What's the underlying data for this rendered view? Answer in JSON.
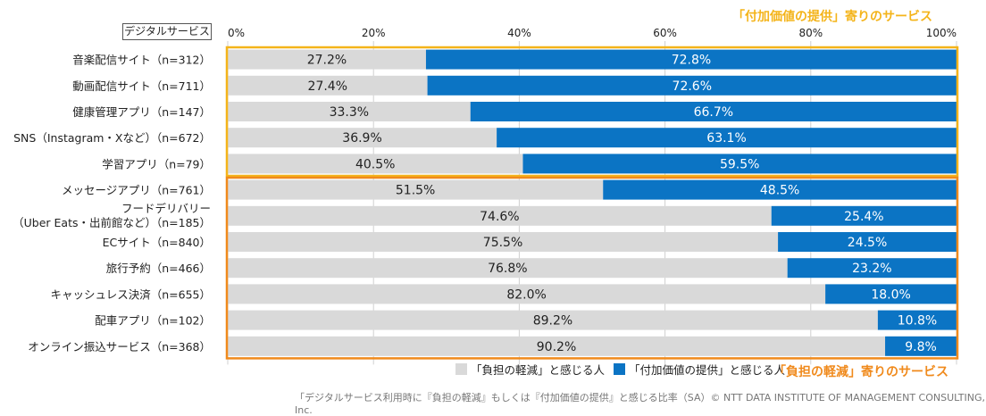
{
  "header": {
    "box_label": "デジタルサービス"
  },
  "groups": {
    "top_label": "「付加価値の提供」寄りのサービス",
    "bottom_label": "「負担の軽減」寄りのサービス",
    "top_color": "#f4b41a",
    "bottom_color": "#f08a1c"
  },
  "legend": [
    {
      "label": "「負担の軽減」と感じる人",
      "color": "#d9d9d9"
    },
    {
      "label": "「付加価値の提供」と感じる人",
      "color": "#0b74c4"
    }
  ],
  "footer": "「デジタルサービス利用時に『負担の軽減』もしくは『付加価値の提供』と感じる比率（SA）© NTT DATA INSTITUTE OF MANAGEMENT CONSULTING, Inc.",
  "chart_data": {
    "type": "bar",
    "orientation": "horizontal",
    "stacked": true,
    "x_ticks": [
      "0%",
      "20%",
      "40%",
      "60%",
      "80%",
      "100%"
    ],
    "xlim": [
      0,
      100
    ],
    "grid": true,
    "categories": [
      [
        "音楽配信サイト（n=312）"
      ],
      [
        "動画配信サイト（n=711）"
      ],
      [
        "健康管理アプリ（n=147）"
      ],
      [
        "SNS（Instagram・Xなど）（n=672）"
      ],
      [
        "学習アプリ（n=79）"
      ],
      [
        "メッセージアプリ（n=761）"
      ],
      [
        "フードデリバリー",
        "（Uber Eats・出前館など）（n=185）"
      ],
      [
        "ECサイト（n=840）"
      ],
      [
        "旅行予約（n=466）"
      ],
      [
        "キャッシュレス決済（n=655）"
      ],
      [
        "配車アプリ（n=102）"
      ],
      [
        "オンライン振込サービス（n=368）"
      ]
    ],
    "series": [
      {
        "name": "「負担の軽減」と感じる人",
        "color": "#d9d9d9",
        "values": [
          27.2,
          27.4,
          33.3,
          36.9,
          40.5,
          51.5,
          74.6,
          75.5,
          76.8,
          82.0,
          89.2,
          90.2
        ],
        "labels": [
          "27.2%",
          "27.4%",
          "33.3%",
          "36.9%",
          "40.5%",
          "51.5%",
          "74.6%",
          "75.5%",
          "76.8%",
          "82.0%",
          "89.2%",
          "90.2%"
        ]
      },
      {
        "name": "「付加価値の提供」と感じる人",
        "color": "#0b74c4",
        "values": [
          72.8,
          72.6,
          66.7,
          63.1,
          59.5,
          48.5,
          25.4,
          24.5,
          23.2,
          18.0,
          10.8,
          9.8
        ],
        "labels": [
          "72.8%",
          "72.6%",
          "66.7%",
          "63.1%",
          "59.5%",
          "48.5%",
          "25.4%",
          "24.5%",
          "23.2%",
          "18.0%",
          "10.8%",
          "9.8%"
        ]
      }
    ],
    "group_sizes": [
      5,
      7
    ]
  }
}
